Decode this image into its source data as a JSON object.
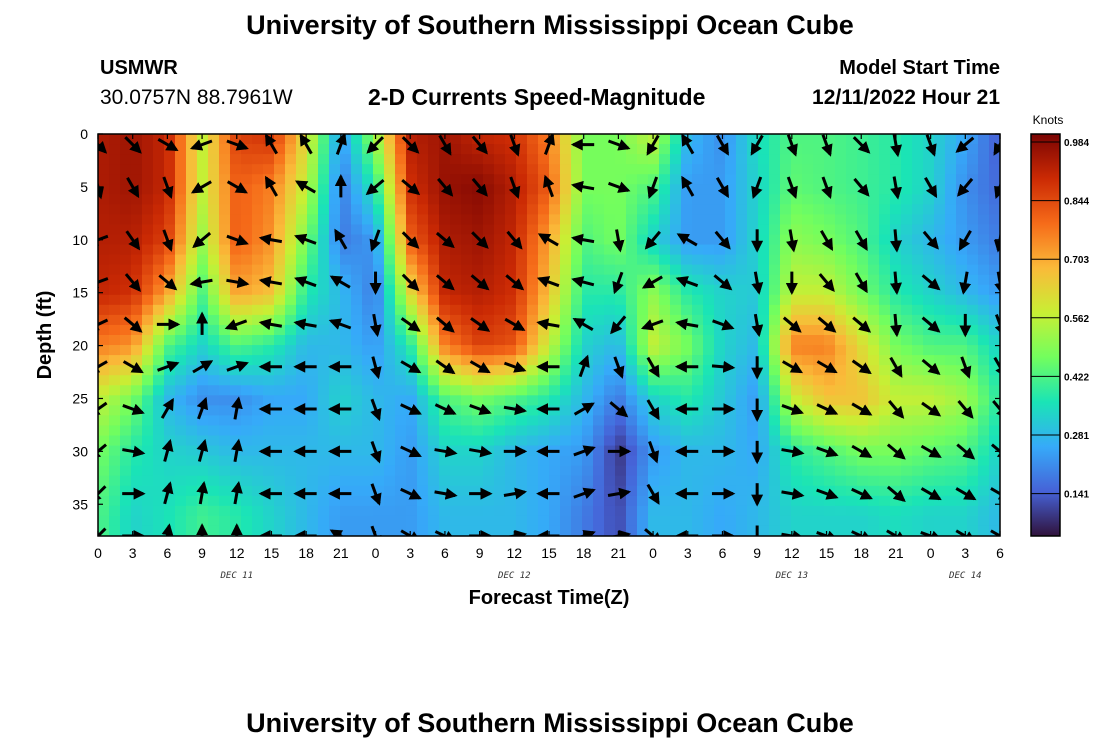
{
  "header": {
    "title": "University of Southern Mississippi Ocean Cube",
    "station_name": "USMWR",
    "coords": "30.0757N  88.7961W",
    "plot_title": "2-D Currents Speed-Magnitude",
    "start_label": "Model Start Time",
    "start_time": "12/11/2022 Hour 21"
  },
  "footer": {
    "title": "University of Southern Mississippi Ocean Cube"
  },
  "colors": {
    "scale": [
      "#30123b",
      "#4662d7",
      "#36aaf9",
      "#1ae4b6",
      "#72fe5e",
      "#c8ef34",
      "#faba39",
      "#f66b19",
      "#cb2a04",
      "#7a0403"
    ]
  },
  "chart_data": {
    "type": "heatmap",
    "title": "2-D Currents Speed-Magnitude",
    "xlabel": "Forecast Time(Z)",
    "ylabel": "Depth (ft)",
    "x_ticks": [
      "0",
      "3",
      "6",
      "9",
      "12",
      "15",
      "18",
      "21",
      "0",
      "3",
      "6",
      "9",
      "12",
      "15",
      "18",
      "21",
      "0",
      "3",
      "6",
      "9",
      "12",
      "15",
      "18",
      "21",
      "0",
      "3",
      "6"
    ],
    "x_range_hours": [
      0,
      78
    ],
    "day_labels": [
      {
        "label": "DEC 11",
        "hour": 12
      },
      {
        "label": "DEC 12",
        "hour": 36
      },
      {
        "label": "DEC 13",
        "hour": 60
      },
      {
        "label": "DEC 14",
        "hour": 75
      }
    ],
    "y_ticks": [
      0,
      5,
      10,
      15,
      20,
      25,
      30,
      35
    ],
    "y_range": [
      0,
      38
    ],
    "colorbar": {
      "unit": "Knots",
      "ticks": [
        "0.984",
        "0.844",
        "0.703",
        "0.562",
        "0.422",
        "0.281",
        "0.141"
      ],
      "range": [
        0.0,
        1.0
      ]
    },
    "speed_field": [
      {
        "hour": 0,
        "speeds": [
          0.93,
          0.93,
          0.92,
          0.9,
          0.75,
          0.55,
          0.45,
          0.4
        ]
      },
      {
        "hour": 3,
        "speeds": [
          0.95,
          0.95,
          0.92,
          0.88,
          0.72,
          0.45,
          0.35,
          0.3
        ]
      },
      {
        "hour": 6,
        "speeds": [
          0.9,
          0.9,
          0.85,
          0.7,
          0.4,
          0.25,
          0.3,
          0.33
        ]
      },
      {
        "hour": 9,
        "speeds": [
          0.55,
          0.55,
          0.5,
          0.4,
          0.3,
          0.18,
          0.28,
          0.38
        ]
      },
      {
        "hour": 12,
        "speeds": [
          0.85,
          0.8,
          0.8,
          0.7,
          0.4,
          0.18,
          0.25,
          0.35
        ]
      },
      {
        "hour": 15,
        "speeds": [
          0.88,
          0.75,
          0.72,
          0.65,
          0.35,
          0.22,
          0.25,
          0.3
        ]
      },
      {
        "hour": 18,
        "speeds": [
          0.6,
          0.55,
          0.45,
          0.35,
          0.25,
          0.22,
          0.25,
          0.25
        ]
      },
      {
        "hour": 21,
        "speeds": [
          0.2,
          0.15,
          0.15,
          0.25,
          0.25,
          0.3,
          0.25,
          0.2
        ]
      },
      {
        "hour": 24,
        "speeds": [
          0.5,
          0.35,
          0.2,
          0.15,
          0.2,
          0.25,
          0.25,
          0.2
        ]
      },
      {
        "hour": 27,
        "speeds": [
          0.92,
          0.88,
          0.8,
          0.6,
          0.35,
          0.22,
          0.2,
          0.2
        ]
      },
      {
        "hour": 30,
        "speeds": [
          0.95,
          0.96,
          0.93,
          0.9,
          0.75,
          0.4,
          0.3,
          0.25
        ]
      },
      {
        "hour": 33,
        "speeds": [
          0.9,
          0.98,
          0.95,
          0.92,
          0.85,
          0.45,
          0.3,
          0.25
        ]
      },
      {
        "hour": 36,
        "speeds": [
          0.88,
          0.92,
          0.9,
          0.88,
          0.82,
          0.4,
          0.25,
          0.25
        ]
      },
      {
        "hour": 39,
        "speeds": [
          0.75,
          0.8,
          0.7,
          0.65,
          0.55,
          0.35,
          0.22,
          0.22
        ]
      },
      {
        "hour": 42,
        "speeds": [
          0.45,
          0.45,
          0.4,
          0.35,
          0.3,
          0.25,
          0.2,
          0.15
        ]
      },
      {
        "hour": 45,
        "speeds": [
          0.45,
          0.45,
          0.45,
          0.35,
          0.25,
          0.15,
          0.05,
          0.08
        ]
      },
      {
        "hour": 48,
        "speeds": [
          0.55,
          0.4,
          0.3,
          0.48,
          0.55,
          0.3,
          0.2,
          0.25
        ]
      },
      {
        "hour": 51,
        "speeds": [
          0.25,
          0.2,
          0.2,
          0.35,
          0.45,
          0.35,
          0.25,
          0.25
        ]
      },
      {
        "hour": 54,
        "speeds": [
          0.18,
          0.2,
          0.2,
          0.3,
          0.3,
          0.28,
          0.25,
          0.22
        ]
      },
      {
        "hour": 57,
        "speeds": [
          0.32,
          0.3,
          0.3,
          0.28,
          0.25,
          0.2,
          0.22,
          0.25
        ]
      },
      {
        "hour": 60,
        "speeds": [
          0.4,
          0.42,
          0.48,
          0.55,
          0.75,
          0.55,
          0.35,
          0.3
        ]
      },
      {
        "hour": 63,
        "speeds": [
          0.4,
          0.4,
          0.45,
          0.55,
          0.75,
          0.65,
          0.4,
          0.3
        ]
      },
      {
        "hour": 66,
        "speeds": [
          0.38,
          0.38,
          0.4,
          0.45,
          0.6,
          0.65,
          0.45,
          0.3
        ]
      },
      {
        "hour": 69,
        "speeds": [
          0.35,
          0.35,
          0.3,
          0.35,
          0.45,
          0.55,
          0.45,
          0.32
        ]
      },
      {
        "hour": 72,
        "speeds": [
          0.3,
          0.3,
          0.25,
          0.3,
          0.4,
          0.55,
          0.42,
          0.3
        ]
      },
      {
        "hour": 75,
        "speeds": [
          0.22,
          0.18,
          0.2,
          0.25,
          0.4,
          0.5,
          0.4,
          0.3
        ]
      },
      {
        "hour": 78,
        "speeds": [
          0.1,
          0.12,
          0.15,
          0.2,
          0.3,
          0.35,
          0.3,
          0.25
        ]
      }
    ],
    "speed_field_depths": [
      0,
      5,
      10,
      15,
      20,
      25,
      30,
      36
    ],
    "vectors": {
      "hours": [
        0,
        3,
        6,
        9,
        12,
        15,
        18,
        21,
        24,
        27,
        30,
        33,
        36,
        39,
        42,
        45,
        48,
        51,
        54,
        57,
        60,
        63,
        66,
        69,
        72,
        75,
        78
      ],
      "depths": [
        1,
        5,
        10,
        14,
        18,
        22,
        26,
        30,
        34,
        38
      ],
      "direction_deg": [
        [
          135,
          165,
          250,
          250,
          245,
          240,
          235,
          230,
          225,
          225
        ],
        [
          135,
          150,
          145,
          140,
          130,
          120,
          110,
          100,
          90,
          90
        ],
        [
          120,
          160,
          160,
          130,
          90,
          70,
          30,
          15,
          15,
          10
        ],
        [
          250,
          240,
          230,
          260,
          0,
          60,
          20,
          15,
          10,
          0
        ],
        [
          110,
          120,
          110,
          100,
          250,
          70,
          10,
          10,
          10,
          0
        ],
        [
          330,
          330,
          280,
          280,
          280,
          270,
          270,
          270,
          270,
          270
        ],
        [
          330,
          300,
          290,
          290,
          280,
          270,
          270,
          270,
          270,
          270
        ],
        [
          20,
          0,
          330,
          300,
          290,
          270,
          270,
          270,
          270,
          300
        ],
        [
          225,
          230,
          200,
          180,
          170,
          165,
          160,
          160,
          160,
          160
        ],
        [
          135,
          130,
          135,
          135,
          125,
          120,
          115,
          115,
          115,
          120
        ],
        [
          150,
          140,
          130,
          130,
          130,
          125,
          115,
          100,
          100,
          115
        ],
        [
          140,
          140,
          135,
          130,
          125,
          120,
          110,
          100,
          90,
          90
        ],
        [
          160,
          160,
          140,
          130,
          120,
          110,
          100,
          90,
          80,
          80
        ],
        [
          20,
          340,
          300,
          290,
          280,
          270,
          270,
          270,
          270,
          270
        ],
        [
          270,
          280,
          280,
          285,
          300,
          20,
          60,
          70,
          70,
          70
        ],
        [
          110,
          110,
          170,
          200,
          220,
          160,
          130,
          90,
          80,
          80
        ],
        [
          210,
          200,
          220,
          240,
          250,
          150,
          150,
          160,
          150,
          130
        ],
        [
          330,
          330,
          300,
          290,
          280,
          270,
          270,
          270,
          270,
          270
        ],
        [
          150,
          150,
          140,
          130,
          110,
          95,
          90,
          90,
          90,
          90
        ],
        [
          210,
          200,
          180,
          170,
          170,
          180,
          180,
          180,
          180,
          180
        ],
        [
          160,
          160,
          170,
          180,
          130,
          120,
          110,
          100,
          100,
          100
        ],
        [
          160,
          160,
          150,
          140,
          130,
          120,
          115,
          110,
          110,
          110
        ],
        [
          135,
          140,
          150,
          150,
          130,
          125,
          120,
          120,
          115,
          115
        ],
        [
          170,
          170,
          175,
          175,
          175,
          150,
          140,
          130,
          130,
          120
        ],
        [
          160,
          150,
          140,
          130,
          130,
          130,
          125,
          120,
          120,
          110
        ],
        [
          230,
          220,
          210,
          190,
          180,
          160,
          140,
          130,
          120,
          120
        ],
        [
          210,
          200,
          190,
          170,
          160,
          150,
          140,
          130,
          120,
          120
        ]
      ]
    }
  }
}
